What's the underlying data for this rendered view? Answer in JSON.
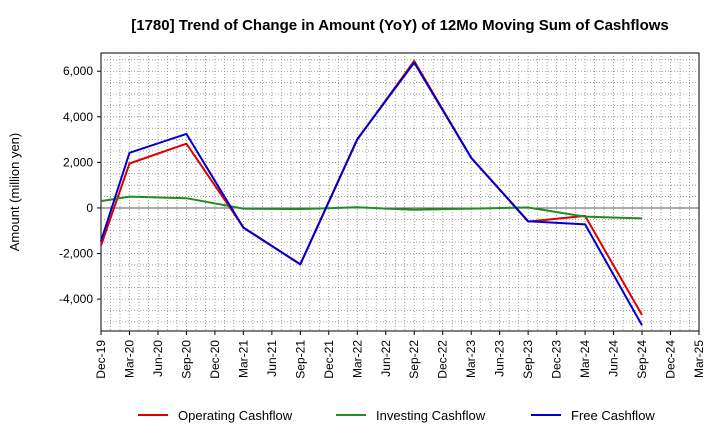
{
  "chart_data": {
    "type": "line",
    "title": "[1780]  Trend of Change in Amount (YoY) of 12Mo Moving Sum of Cashflows",
    "xlabel": "",
    "ylabel": "Amount (million yen)",
    "ylim": [
      -5400,
      6800
    ],
    "yticks": [
      -4000,
      -2000,
      0,
      2000,
      4000,
      6000
    ],
    "ytick_labels": [
      "-4,000",
      "-2,000",
      "0",
      "2,000",
      "4,000",
      "6,000"
    ],
    "categories": [
      "Dec-19",
      "Mar-20",
      "Jun-20",
      "Sep-20",
      "Dec-20",
      "Mar-21",
      "Jun-21",
      "Sep-21",
      "Dec-21",
      "Mar-22",
      "Jun-22",
      "Sep-22",
      "Dec-22",
      "Mar-23",
      "Jun-23",
      "Sep-23",
      "Dec-23",
      "Mar-24",
      "Jun-24",
      "Sep-24",
      "Dec-24",
      "Mar-25"
    ],
    "grid": true,
    "legend_position": "bottom",
    "series": [
      {
        "name": "Operating Cashflow",
        "color": "#dd0000",
        "points": [
          [
            0,
            -1650
          ],
          [
            1,
            1950
          ],
          [
            3,
            2820
          ],
          [
            5,
            -850
          ],
          [
            7,
            -2480
          ],
          [
            9,
            3000
          ],
          [
            11,
            6450
          ],
          [
            13,
            2200
          ],
          [
            15,
            -600
          ],
          [
            17,
            -350
          ],
          [
            19,
            -4700
          ]
        ]
      },
      {
        "name": "Investing Cashflow",
        "color": "#228b22",
        "points": [
          [
            0,
            300
          ],
          [
            1,
            500
          ],
          [
            3,
            430
          ],
          [
            5,
            -30
          ],
          [
            7,
            -50
          ],
          [
            9,
            30
          ],
          [
            11,
            -80
          ],
          [
            13,
            -30
          ],
          [
            15,
            20
          ],
          [
            17,
            -380
          ],
          [
            19,
            -460
          ]
        ]
      },
      {
        "name": "Free Cashflow",
        "color": "#0000cc",
        "points": [
          [
            0,
            -1450
          ],
          [
            1,
            2420
          ],
          [
            3,
            3250
          ],
          [
            5,
            -870
          ],
          [
            7,
            -2470
          ],
          [
            9,
            3020
          ],
          [
            11,
            6380
          ],
          [
            13,
            2200
          ],
          [
            15,
            -580
          ],
          [
            17,
            -720
          ],
          [
            19,
            -5150
          ]
        ]
      }
    ]
  }
}
